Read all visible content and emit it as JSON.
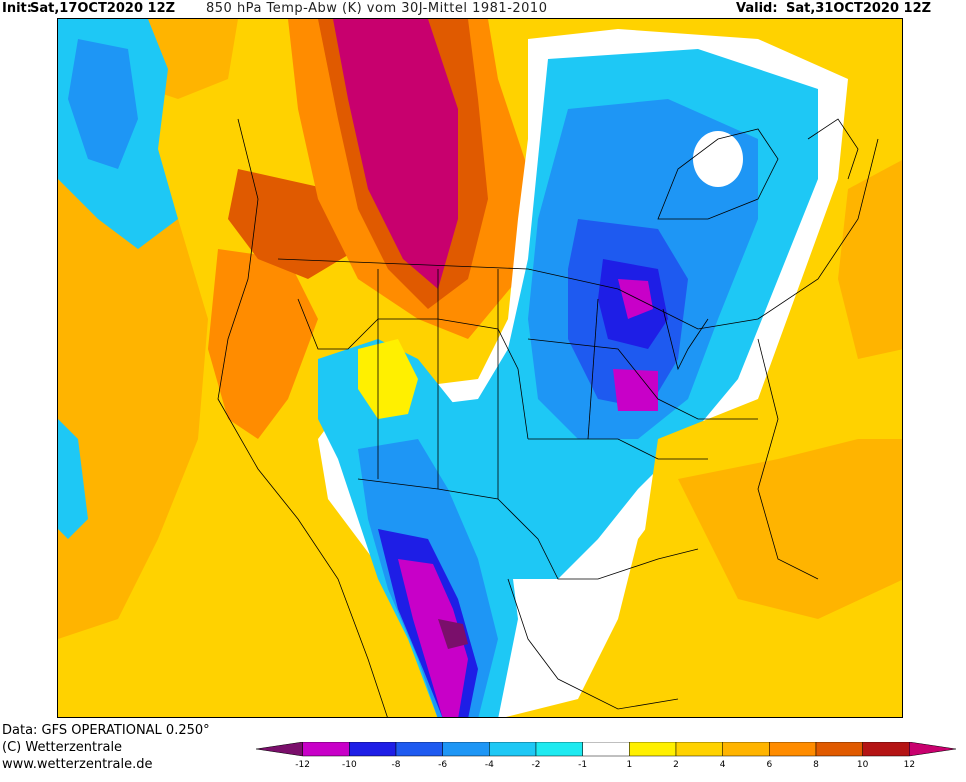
{
  "header": {
    "init_label": "Init:",
    "init_value": "Sat,17OCT2020 12Z",
    "title": "850 hPa Temp-Abw (K) vom 30J-Mittel 1981-2010",
    "valid_label": "Valid:",
    "valid_value": "Sat,31OCT2020 12Z"
  },
  "footer": {
    "data_line": "Data: GFS OPERATIONAL 0.250°",
    "copyright": "(C) Wetterzentrale",
    "website": "www.wetterzentrale.de"
  },
  "legend": {
    "ticks": [
      "-12",
      "-10",
      "-8",
      "-6",
      "-4",
      "-2",
      "-1",
      "1",
      "2",
      "4",
      "6",
      "8",
      "10",
      "12"
    ],
    "colors": [
      "#7a0f6b",
      "#c800c8",
      "#1e1ee6",
      "#1e5af0",
      "#1e96f5",
      "#1ec8f5",
      "#1eeaf0",
      "#ffffff",
      "#fff000",
      "#ffd200",
      "#ffb400",
      "#ff8c00",
      "#e05a00",
      "#b41414",
      "#c8006e"
    ]
  },
  "map": {
    "field": "850 hPa temperature anomaly",
    "region": "North America",
    "features": [
      "warm anomaly Canadian prairies",
      "cold anomaly Great Lakes",
      "cold anomaly northern Mexico",
      "warm anomaly Atlantic",
      "warm anomaly Pacific"
    ]
  }
}
